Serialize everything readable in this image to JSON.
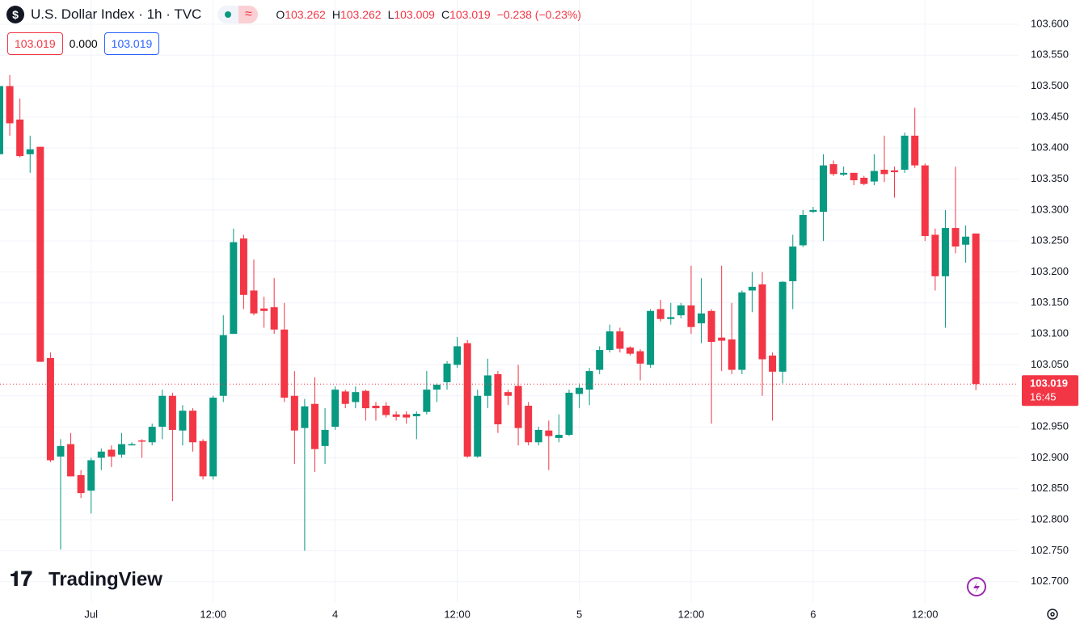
{
  "header": {
    "icon": "$",
    "symbol": "U.S. Dollar Index · 1h · TVC",
    "pill": "≈",
    "ohlc": [
      {
        "key": "O",
        "value": "103.262"
      },
      {
        "key": "H",
        "value": "103.262"
      },
      {
        "key": "L",
        "value": "103.009"
      },
      {
        "key": "C",
        "value": "103.019"
      }
    ],
    "change": "−0.238 (−0.23%)",
    "badges": [
      "103.019",
      "0.000",
      "103.019"
    ]
  },
  "branding": "TradingView",
  "chart_data": {
    "type": "candlestick",
    "categories": [
      null,
      null,
      null,
      null,
      null,
      null,
      null,
      null,
      null,
      "Jul",
      null,
      null,
      null,
      null,
      null,
      null,
      null,
      null,
      null,
      null,
      null,
      "12:00",
      null,
      null,
      null,
      null,
      null,
      null,
      null,
      null,
      null,
      null,
      null,
      "4",
      null,
      null,
      null,
      null,
      null,
      null,
      null,
      null,
      null,
      null,
      null,
      "12:00",
      null,
      null,
      null,
      null,
      null,
      null,
      null,
      null,
      null,
      null,
      null,
      "5",
      null,
      null,
      null,
      null,
      null,
      null,
      null,
      null,
      null,
      null,
      "12:00",
      null,
      null,
      null,
      null,
      null,
      null,
      null,
      null,
      null,
      null,
      null,
      "6",
      null,
      null,
      null,
      null,
      null,
      null,
      null,
      null,
      null,
      null,
      "12:00",
      null,
      null,
      null,
      null,
      null
    ],
    "open": [
      103.39,
      103.5,
      103.446,
      103.39,
      103.402,
      103.061,
      102.902,
      102.922,
      102.872,
      102.847,
      102.9,
      102.913,
      102.905,
      102.92,
      102.928,
      102.925,
      102.95,
      103.0,
      102.944,
      102.976,
      102.927,
      102.87,
      103.0,
      103.1,
      103.254,
      103.17,
      103.141,
      103.143,
      103.107,
      103.0,
      102.948,
      102.987,
      102.919,
      102.95,
      103.007,
      102.99,
      103.008,
      102.984,
      102.984,
      102.97,
      102.97,
      102.967,
      102.974,
      103.01,
      103.022,
      103.05,
      103.085,
      102.902,
      103.0,
      103.035,
      103.006,
      103.016,
      102.984,
      102.925,
      102.944,
      102.932,
      102.937,
      103.003,
      103.01,
      103.042,
      103.074,
      103.104,
      103.078,
      103.072,
      103.05,
      103.14,
      103.124,
      103.13,
      103.146,
      103.117,
      103.137,
      103.094,
      103.091,
      103.042,
      103.17,
      103.18,
      103.065,
      103.039,
      103.185,
      103.243,
      103.297,
      103.297,
      103.374,
      103.357,
      103.36,
      103.352,
      103.346,
      103.365,
      103.364,
      103.365,
      103.42,
      103.372,
      103.26,
      103.193,
      103.271,
      103.244,
      103.262
    ],
    "high": [
      103.5,
      103.518,
      103.48,
      103.42,
      103.402,
      103.07,
      102.93,
      102.94,
      102.88,
      102.9,
      102.915,
      102.92,
      102.94,
      102.925,
      102.93,
      102.955,
      103.01,
      103.005,
      102.985,
      102.98,
      102.93,
      103.0,
      103.13,
      103.27,
      103.26,
      103.22,
      103.16,
      103.19,
      103.15,
      103.04,
      102.995,
      103.03,
      102.98,
      103.015,
      103.01,
      103.015,
      103.01,
      102.99,
      102.99,
      102.975,
      102.975,
      102.975,
      103.04,
      103.02,
      103.056,
      103.095,
      103.09,
      103.01,
      103.06,
      103.04,
      103.01,
      103.05,
      102.99,
      102.95,
      102.96,
      102.97,
      103.01,
      103.02,
      103.045,
      103.08,
      103.115,
      103.11,
      103.08,
      103.075,
      103.14,
      103.155,
      103.15,
      103.15,
      103.21,
      103.19,
      103.14,
      103.21,
      103.15,
      103.17,
      103.2,
      103.2,
      103.07,
      103.185,
      103.26,
      103.3,
      103.305,
      103.39,
      103.38,
      103.37,
      103.36,
      103.355,
      103.39,
      103.42,
      103.37,
      103.425,
      103.465,
      103.375,
      103.27,
      103.3,
      103.37,
      103.275,
      103.262
    ],
    "low": [
      103.39,
      103.42,
      103.385,
      103.36,
      103.055,
      102.893,
      102.752,
      102.87,
      102.835,
      102.81,
      102.88,
      102.885,
      102.9,
      102.92,
      102.9,
      102.92,
      102.93,
      102.83,
      102.92,
      102.91,
      102.865,
      102.865,
      102.99,
      103.1,
      103.14,
      103.13,
      103.11,
      103.1,
      102.99,
      102.89,
      102.75,
      102.877,
      102.89,
      102.945,
      102.98,
      102.98,
      102.96,
      102.96,
      102.965,
      102.96,
      102.955,
      102.93,
      102.97,
      102.99,
      103.01,
      103.045,
      102.9,
      102.9,
      102.98,
      102.94,
      102.985,
      102.92,
      102.92,
      102.92,
      102.88,
      102.925,
      102.935,
      102.98,
      102.985,
      103.035,
      103.07,
      103.07,
      103.065,
      103.025,
      103.045,
      103.12,
      103.115,
      103.125,
      103.1,
      103.085,
      102.955,
      103.04,
      103.035,
      103.035,
      103.135,
      103.0,
      102.96,
      103.02,
      103.14,
      103.24,
      103.295,
      103.25,
      103.355,
      103.355,
      103.34,
      103.34,
      103.34,
      103.345,
      103.32,
      103.36,
      103.368,
      103.25,
      103.17,
      103.11,
      103.23,
      103.215,
      103.009
    ],
    "close": [
      103.5,
      103.44,
      103.387,
      103.398,
      103.055,
      102.896,
      102.919,
      102.87,
      102.843,
      102.896,
      102.91,
      102.902,
      102.922,
      102.922,
      102.926,
      102.95,
      103.0,
      102.945,
      102.976,
      102.925,
      102.87,
      102.997,
      103.098,
      103.248,
      103.163,
      103.133,
      103.137,
      103.107,
      102.997,
      102.944,
      102.983,
      102.914,
      102.945,
      103.01,
      102.987,
      103.006,
      102.98,
      102.98,
      102.969,
      102.966,
      102.965,
      102.971,
      103.01,
      103.018,
      103.052,
      103.08,
      102.902,
      103.0,
      103.033,
      102.954,
      103.0,
      102.948,
      102.925,
      102.945,
      102.935,
      102.937,
      103.005,
      103.013,
      103.04,
      103.074,
      103.104,
      103.076,
      103.068,
      103.052,
      103.137,
      103.124,
      103.127,
      103.146,
      103.111,
      103.133,
      103.087,
      103.089,
      103.042,
      103.167,
      103.176,
      103.059,
      103.039,
      103.184,
      103.241,
      103.292,
      103.3,
      103.372,
      103.358,
      103.36,
      103.348,
      103.342,
      103.363,
      103.358,
      103.361,
      103.42,
      103.372,
      103.258,
      103.193,
      103.271,
      103.241,
      103.257,
      103.019
    ],
    "up_color": "#089981",
    "down_color": "#f23645",
    "ylim": [
      102.667,
      103.639
    ],
    "yticks": [
      {
        "value": 102.7,
        "label": "102.700"
      },
      {
        "value": 102.75,
        "label": "102.750"
      },
      {
        "value": 102.8,
        "label": "102.800"
      },
      {
        "value": 102.85,
        "label": "102.850"
      },
      {
        "value": 102.9,
        "label": "102.900"
      },
      {
        "value": 102.95,
        "label": "102.950"
      },
      {
        "value": 103.0,
        "label": "103.000"
      },
      {
        "value": 103.05,
        "label": "103.050"
      },
      {
        "value": 103.1,
        "label": "103.100"
      },
      {
        "value": 103.15,
        "label": "103.150"
      },
      {
        "value": 103.2,
        "label": "103.200"
      },
      {
        "value": 103.25,
        "label": "103.250"
      },
      {
        "value": 103.3,
        "label": "103.300"
      },
      {
        "value": 103.35,
        "label": "103.350"
      },
      {
        "value": 103.4,
        "label": "103.400"
      },
      {
        "value": 103.45,
        "label": "103.450"
      },
      {
        "value": 103.5,
        "label": "103.500"
      },
      {
        "value": 103.55,
        "label": "103.550"
      },
      {
        "value": 103.6,
        "label": "103.600"
      }
    ],
    "grid": true,
    "last_price": 103.019,
    "last_price_time": "16:45"
  }
}
